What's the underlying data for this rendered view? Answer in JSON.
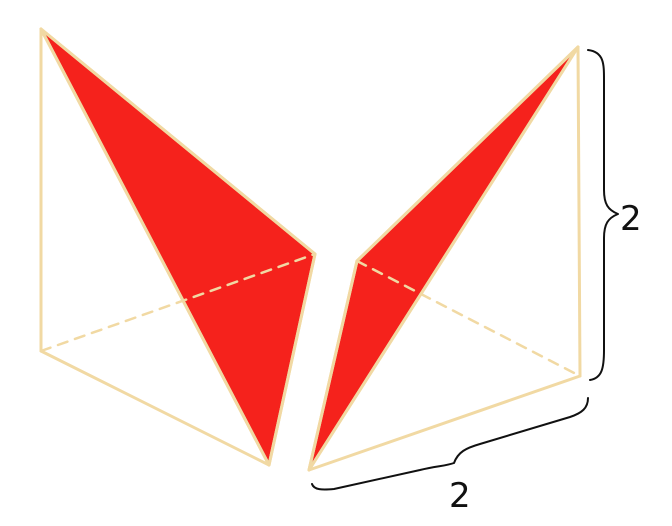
{
  "figure": {
    "fill_color": "#f5221c",
    "edge_color": "#f1d9a3",
    "brace_color": "#111111",
    "labels": {
      "height": "2",
      "width": "2"
    }
  }
}
